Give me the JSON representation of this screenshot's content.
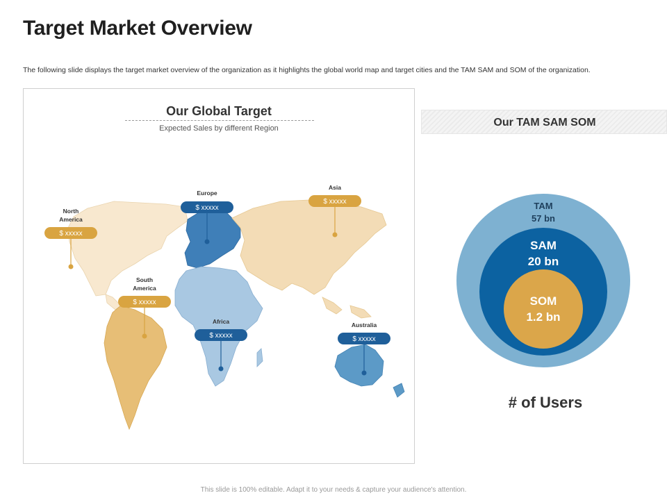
{
  "slide": {
    "title": "Target Market Overview",
    "subtitle": "The following slide displays the target market overview of the organization as it highlights the global world map and target cities and the TAM SAM and SOM of the organization.",
    "footer": "This slide is 100% editable. Adapt it to your needs & capture your audience's attention."
  },
  "map_panel": {
    "heading": "Our Global Target",
    "subheading": "Expected Sales by different Region",
    "regions": [
      {
        "label_line1": "North",
        "label_line2": "America",
        "value": "$ xxxxx",
        "color": "#d9a441"
      },
      {
        "label_line1": "Europe",
        "label_line2": "",
        "value": "$ xxxxx",
        "color": "#1f5f9a"
      },
      {
        "label_line1": "Asia",
        "label_line2": "",
        "value": "$ xxxxx",
        "color": "#d9a441"
      },
      {
        "label_line1": "South",
        "label_line2": "America",
        "value": "$ xxxxx",
        "color": "#d9a441"
      },
      {
        "label_line1": "Africa",
        "label_line2": "",
        "value": "$ xxxxx",
        "color": "#1f5f9a"
      },
      {
        "label_line1": "Australia",
        "label_line2": "",
        "value": "$ xxxxx",
        "color": "#1f5f9a"
      }
    ]
  },
  "tam_panel": {
    "header": "Our TAM SAM SOM",
    "tam": {
      "name": "TAM",
      "value": "57 bn",
      "color": "#7eb1d1"
    },
    "sam": {
      "name": "SAM",
      "value": "20 bn",
      "color": "#0c62a1"
    },
    "som": {
      "name": "SOM",
      "value": "1.2 bn",
      "color": "#dba64a"
    },
    "caption": "# of Users"
  },
  "colors": {
    "accent_gold": "#d9a441",
    "accent_blue": "#1f5f9a",
    "land_light": "#f3dcb6",
    "land_blue": "#a9c8e2"
  }
}
